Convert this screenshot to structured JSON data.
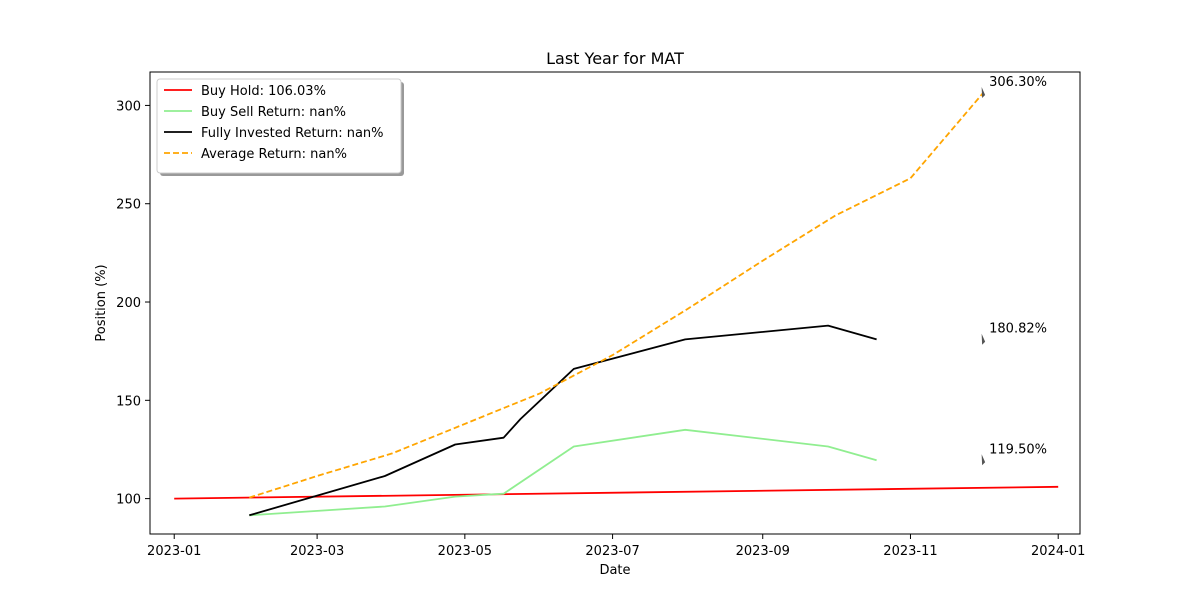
{
  "chart_data": {
    "type": "line",
    "title": "Last Year for MAT",
    "xlabel": "Date",
    "ylabel": "Position (%)",
    "xlim": [
      "2022-12-22",
      "2024-01-10"
    ],
    "ylim": [
      82,
      317
    ],
    "x_ticks": [
      "2023-01-01",
      "2023-03-01",
      "2023-05-01",
      "2023-07-01",
      "2023-09-01",
      "2023-11-01",
      "2024-01-01"
    ],
    "x_tick_labels": [
      "2023-01",
      "2023-03",
      "2023-05",
      "2023-07",
      "2023-09",
      "2023-11",
      "2024-01"
    ],
    "y_ticks": [
      100,
      150,
      200,
      250,
      300
    ],
    "y_tick_labels": [
      "100",
      "150",
      "200",
      "250",
      "300"
    ],
    "grid": false,
    "legend_position": "top-left",
    "series": [
      {
        "name": "Buy Hold: 106.03%",
        "color": "#ff0000",
        "style": "solid",
        "points": [
          [
            "2023-01-01",
            100.0
          ],
          [
            "2024-01-01",
            106.03
          ]
        ]
      },
      {
        "name": "Buy Sell Return: nan%",
        "color": "#90ee90",
        "style": "solid",
        "points": [
          [
            "2023-02-01",
            91.5
          ],
          [
            "2023-03-29",
            96.0
          ],
          [
            "2023-04-27",
            101.0
          ],
          [
            "2023-05-17",
            102.5
          ],
          [
            "2023-06-15",
            126.5
          ],
          [
            "2023-07-31",
            135.0
          ],
          [
            "2023-09-28",
            126.5
          ],
          [
            "2023-10-18",
            119.5
          ]
        ]
      },
      {
        "name": "Fully Invested Return: nan%",
        "color": "#000000",
        "style": "solid",
        "points": [
          [
            "2023-02-01",
            91.5
          ],
          [
            "2023-03-29",
            111.5
          ],
          [
            "2023-04-27",
            127.5
          ],
          [
            "2023-05-17",
            131.0
          ],
          [
            "2023-05-24",
            140.5
          ],
          [
            "2023-06-15",
            166.0
          ],
          [
            "2023-07-31",
            181.0
          ],
          [
            "2023-09-28",
            188.0
          ],
          [
            "2023-10-18",
            181.0
          ]
        ]
      },
      {
        "name": "Average Return: nan%",
        "color": "#ffa500",
        "style": "dashed",
        "points": [
          [
            "2023-02-01",
            100.5
          ],
          [
            "2023-03-01",
            111.5
          ],
          [
            "2023-04-01",
            123.0
          ],
          [
            "2023-05-01",
            138.0
          ],
          [
            "2023-06-01",
            153.5
          ],
          [
            "2023-07-01",
            173.0
          ],
          [
            "2023-08-01",
            196.5
          ],
          [
            "2023-09-01",
            221.0
          ],
          [
            "2023-10-01",
            244.0
          ],
          [
            "2023-11-01",
            263.0
          ],
          [
            "2023-12-01",
            306.3
          ]
        ]
      }
    ],
    "annotations": [
      {
        "text": "306.30%",
        "x": "2023-12-01",
        "y": 306.3,
        "color": "#ffa500"
      },
      {
        "text": "180.82%",
        "x": "2023-12-01",
        "y": 180.82,
        "color": "#000000"
      },
      {
        "text": "119.50%",
        "x": "2023-12-01",
        "y": 119.5,
        "color": "#90ee90"
      }
    ]
  }
}
